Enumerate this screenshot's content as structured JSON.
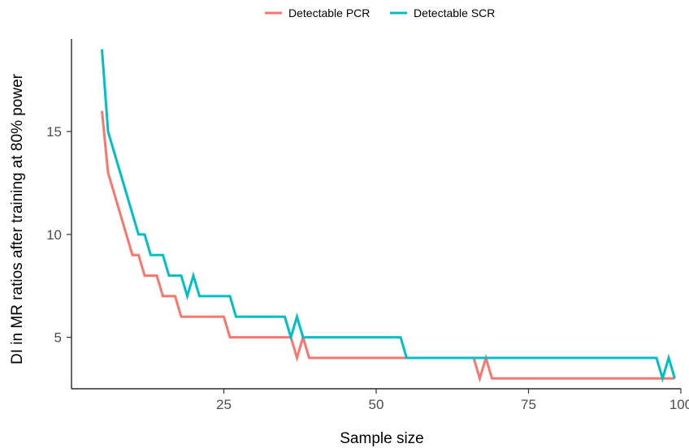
{
  "chart_data": {
    "type": "line",
    "title": "",
    "xlabel": "Sample size",
    "ylabel": "DI in MR ratios after training at 80% power",
    "xlim": [
      0,
      100
    ],
    "ylim": [
      2.5,
      19.5
    ],
    "x_ticks": [
      25,
      50,
      75,
      100
    ],
    "y_ticks": [
      5,
      10,
      15
    ],
    "grid": false,
    "legend_position": "top",
    "series": [
      {
        "name": "Detectable PCR",
        "color": "#F8766D",
        "points": [
          [
            5,
            16
          ],
          [
            6,
            13
          ],
          [
            7,
            12
          ],
          [
            8,
            11
          ],
          [
            9,
            10
          ],
          [
            10,
            9
          ],
          [
            11,
            9
          ],
          [
            12,
            8
          ],
          [
            13,
            8
          ],
          [
            14,
            8
          ],
          [
            15,
            7
          ],
          [
            16,
            7
          ],
          [
            17,
            7
          ],
          [
            18,
            6
          ],
          [
            19,
            6
          ],
          [
            20,
            6
          ],
          [
            21,
            6
          ],
          [
            22,
            6
          ],
          [
            23,
            6
          ],
          [
            24,
            6
          ],
          [
            25,
            6
          ],
          [
            26,
            5
          ],
          [
            27,
            5
          ],
          [
            30,
            5
          ],
          [
            33,
            5
          ],
          [
            35,
            5
          ],
          [
            36,
            5
          ],
          [
            37,
            4
          ],
          [
            38,
            5
          ],
          [
            39,
            4
          ],
          [
            40,
            4
          ],
          [
            45,
            4
          ],
          [
            50,
            4
          ],
          [
            54,
            4
          ],
          [
            55,
            4
          ],
          [
            60,
            4
          ],
          [
            66,
            4
          ],
          [
            67,
            3
          ],
          [
            68,
            4
          ],
          [
            69,
            3
          ],
          [
            70,
            3
          ],
          [
            80,
            3
          ],
          [
            90,
            3
          ],
          [
            96,
            3
          ],
          [
            97,
            3
          ],
          [
            98,
            3
          ],
          [
            99,
            3
          ]
        ]
      },
      {
        "name": "Detectable SCR",
        "color": "#00BFC4",
        "points": [
          [
            5,
            19
          ],
          [
            6,
            15
          ],
          [
            7,
            14
          ],
          [
            8,
            13
          ],
          [
            9,
            12
          ],
          [
            10,
            11
          ],
          [
            11,
            10
          ],
          [
            12,
            10
          ],
          [
            13,
            9
          ],
          [
            14,
            9
          ],
          [
            15,
            9
          ],
          [
            16,
            8
          ],
          [
            17,
            8
          ],
          [
            18,
            8
          ],
          [
            19,
            7
          ],
          [
            20,
            8
          ],
          [
            21,
            7
          ],
          [
            22,
            7
          ],
          [
            24,
            7
          ],
          [
            25,
            7
          ],
          [
            26,
            7
          ],
          [
            27,
            6
          ],
          [
            28,
            6
          ],
          [
            30,
            6
          ],
          [
            33,
            6
          ],
          [
            35,
            6
          ],
          [
            36,
            5
          ],
          [
            37,
            6
          ],
          [
            38,
            5
          ],
          [
            39,
            5
          ],
          [
            40,
            5
          ],
          [
            45,
            5
          ],
          [
            50,
            5
          ],
          [
            54,
            5
          ],
          [
            55,
            4
          ],
          [
            60,
            4
          ],
          [
            66,
            4
          ],
          [
            67,
            4
          ],
          [
            68,
            4
          ],
          [
            70,
            4
          ],
          [
            80,
            4
          ],
          [
            90,
            4
          ],
          [
            96,
            4
          ],
          [
            97,
            3
          ],
          [
            98,
            4
          ],
          [
            99,
            3
          ]
        ]
      }
    ]
  }
}
